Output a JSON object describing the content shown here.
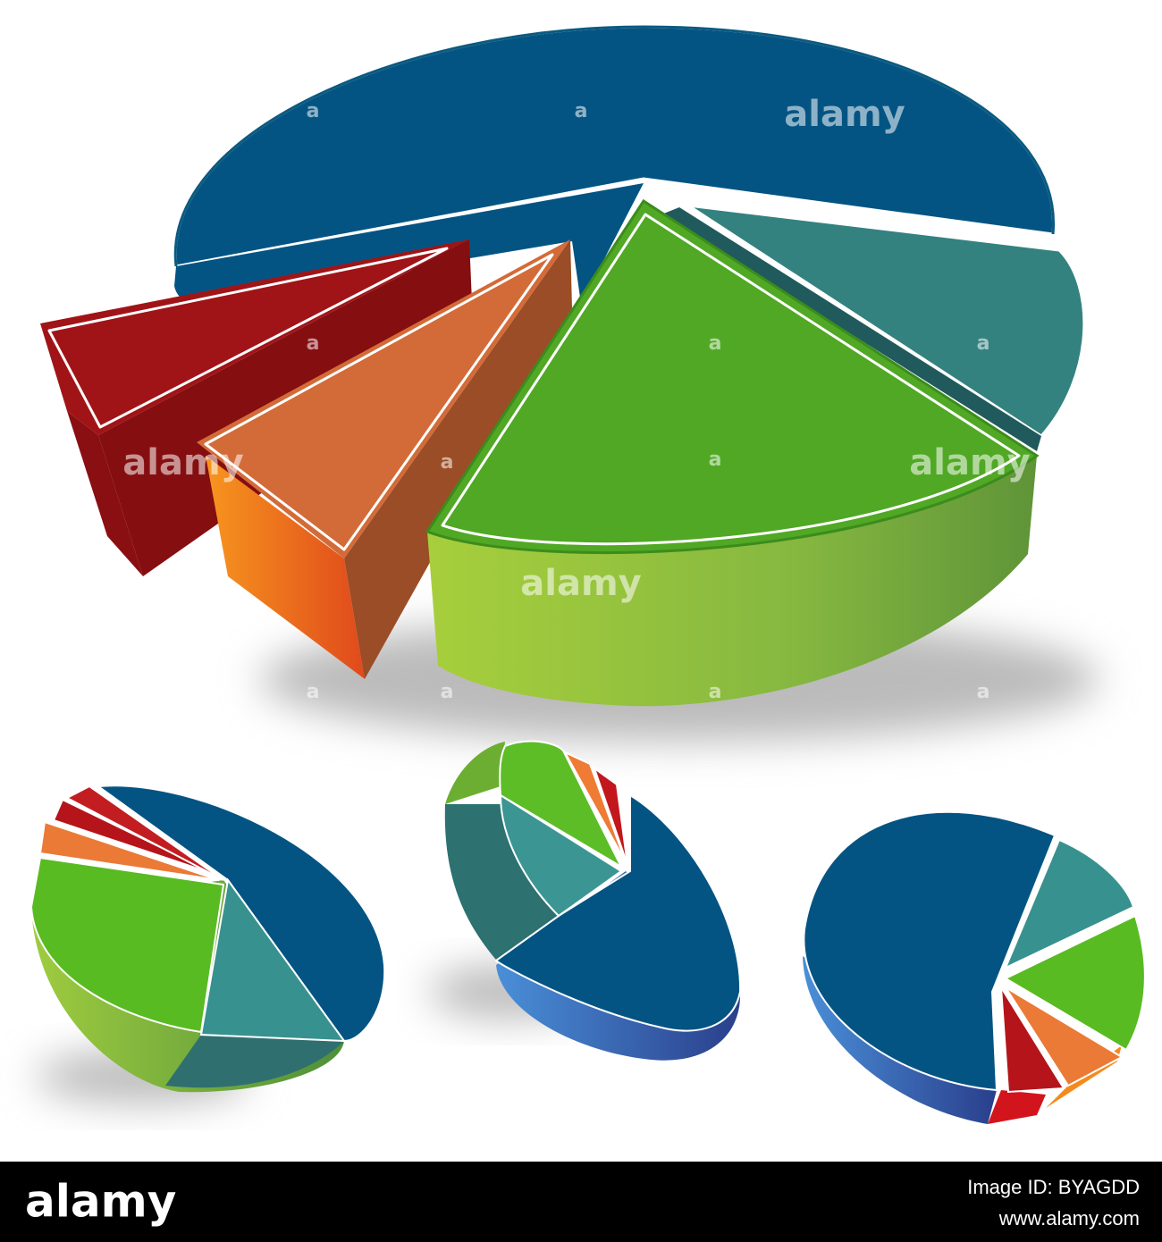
{
  "watermark": "alamy",
  "watermark_mark": "a",
  "footer": {
    "logo": "alamy",
    "image_id": "Image ID: BYAGDD",
    "url": "www.alamy.com"
  }
}
